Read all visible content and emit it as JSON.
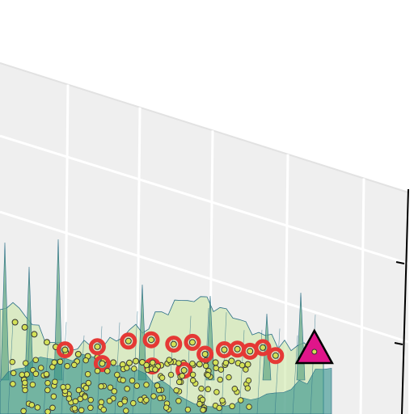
{
  "chart_data": {
    "type": "scatter",
    "title": "",
    "xlabel": "",
    "ylabel": "",
    "zlabel": "",
    "projection": "3d",
    "grid": true,
    "background_panel_color": "#efefef",
    "gridline_color": "#ffffff",
    "surface": {
      "kind": "wireframe-surface",
      "fill_color_low": "#2f8f8a",
      "fill_color_high": "#c8e6a0",
      "line_color": "#2a6f86"
    },
    "series": [
      {
        "marker": "circle",
        "color": "#d4e157",
        "edge_color": "#333333",
        "size": "small",
        "points": [
          [
            0.02,
            0.05,
            0.6
          ],
          [
            0.05,
            0.08,
            0.55
          ],
          [
            0.08,
            0.1,
            0.48
          ],
          [
            0.12,
            0.12,
            0.4
          ],
          [
            0.15,
            0.1,
            0.35
          ],
          [
            0.18,
            0.14,
            0.3
          ],
          [
            0.22,
            0.16,
            0.28
          ],
          [
            0.25,
            0.18,
            0.26
          ],
          [
            0.28,
            0.2,
            0.25
          ],
          [
            0.3,
            0.22,
            0.22
          ],
          [
            0.33,
            0.24,
            0.2
          ],
          [
            0.36,
            0.25,
            0.18
          ],
          [
            0.38,
            0.28,
            0.2
          ],
          [
            0.4,
            0.3,
            0.22
          ],
          [
            0.42,
            0.32,
            0.21
          ],
          [
            0.45,
            0.3,
            0.19
          ],
          [
            0.48,
            0.34,
            0.18
          ],
          [
            0.5,
            0.36,
            0.2
          ],
          [
            0.52,
            0.38,
            0.22
          ],
          [
            0.55,
            0.4,
            0.21
          ],
          [
            0.58,
            0.42,
            0.19
          ],
          [
            0.6,
            0.44,
            0.2
          ],
          [
            0.62,
            0.46,
            0.24
          ],
          [
            0.65,
            0.48,
            0.22
          ],
          [
            0.68,
            0.5,
            0.2
          ],
          [
            0.7,
            0.52,
            0.24
          ],
          [
            0.72,
            0.55,
            0.22
          ],
          [
            0.75,
            0.58,
            0.21
          ]
        ]
      },
      {
        "marker": "circle",
        "color": "#e53935",
        "edge_color": "#cc0000",
        "size": "large",
        "points": [
          [
            0.18,
            0.1,
            0.32
          ],
          [
            0.28,
            0.2,
            0.36
          ],
          [
            0.38,
            0.22,
            0.42
          ],
          [
            0.45,
            0.3,
            0.44
          ],
          [
            0.52,
            0.36,
            0.4
          ],
          [
            0.58,
            0.38,
            0.42
          ],
          [
            0.62,
            0.4,
            0.3
          ],
          [
            0.68,
            0.45,
            0.35
          ],
          [
            0.72,
            0.5,
            0.36
          ],
          [
            0.76,
            0.52,
            0.34
          ],
          [
            0.8,
            0.55,
            0.38
          ],
          [
            0.84,
            0.58,
            0.3
          ],
          [
            0.3,
            0.12,
            0.18
          ],
          [
            0.46,
            0.18,
            0.16
          ],
          [
            0.56,
            0.24,
            0.12
          ]
        ]
      },
      {
        "marker": "triangle",
        "color": "#e0158a",
        "edge_color": "#000000",
        "size": "large",
        "points": [
          [
            0.96,
            0.7,
            0.4
          ]
        ]
      }
    ]
  }
}
